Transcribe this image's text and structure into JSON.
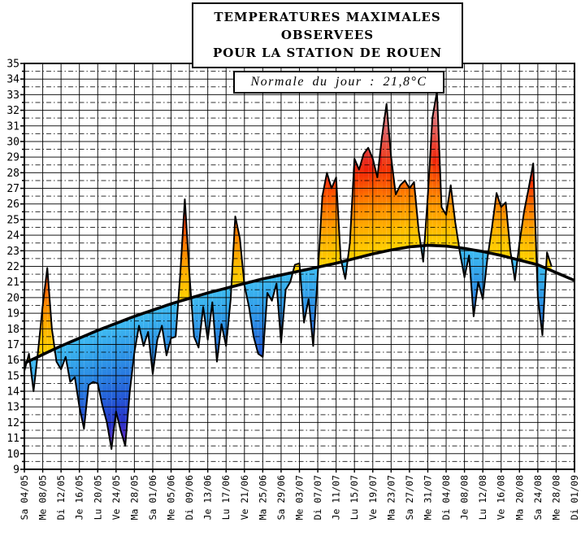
{
  "title": {
    "line1": "TEMPERATURES MAXIMALES OBSERVEES",
    "line2": "POUR LA STATION DE ROUEN"
  },
  "annotation": {
    "text": "Normale du jour : 21,8°C"
  },
  "chart_data": {
    "type": "area",
    "title": "TEMPERATURES MAXIMALES OBSERVEES POUR LA STATION DE ROUEN",
    "annotation": "Normale du jour : 21,8°C",
    "xlabel": "",
    "ylabel": "",
    "ylim": [
      9,
      35
    ],
    "y_tick_step": 1,
    "grid": {
      "h_solid_step": 1,
      "h_dash_step": 0.5,
      "v_step_days": 4,
      "grid_on": true
    },
    "total_days": 120,
    "days_per_tick": 4,
    "x_tick_labels": [
      "Sa 04/05",
      "Me 08/05",
      "Di 12/05",
      "Je 16/05",
      "Lu 20/05",
      "Ve 24/05",
      "Ma 28/05",
      "Sa 01/06",
      "Me 05/06",
      "Di 09/06",
      "Je 13/06",
      "Lu 17/06",
      "Ve 21/06",
      "Ma 25/06",
      "Sa 29/06",
      "Me 03/07",
      "Di 07/07",
      "Je 11/07",
      "Lu 15/07",
      "Ve 19/07",
      "Ma 23/07",
      "Sa 27/07",
      "Me 31/07",
      "Di 04/08",
      "Je 08/08",
      "Lu 12/08",
      "Ve 16/08",
      "Ma 20/08",
      "Sa 24/08",
      "Me 28/08",
      "Di 01/09"
    ],
    "series": [
      {
        "name": "normale du jour",
        "type": "line",
        "values_at_ticks": [
          15.8,
          16.35,
          16.9,
          17.4,
          17.9,
          18.35,
          18.8,
          19.2,
          19.6,
          19.95,
          20.3,
          20.6,
          20.9,
          21.2,
          21.45,
          21.7,
          21.95,
          22.2,
          22.5,
          22.8,
          23.05,
          23.25,
          23.35,
          23.3,
          23.15,
          22.95,
          22.7,
          22.4,
          22.1,
          21.6,
          21.1
        ]
      },
      {
        "name": "temperature maximale quotidienne",
        "type": "area",
        "start_day": 0,
        "values": [
          15.3,
          16.4,
          14.0,
          16.6,
          19.5,
          21.9,
          18.0,
          15.9,
          15.4,
          16.2,
          14.6,
          14.9,
          13.0,
          11.6,
          14.4,
          14.6,
          14.5,
          13.1,
          12.0,
          10.3,
          12.7,
          11.5,
          10.5,
          14.0,
          16.5,
          18.2,
          16.9,
          17.8,
          15.1,
          17.3,
          18.2,
          16.3,
          17.4,
          17.5,
          21.5,
          26.3,
          21.5,
          17.5,
          16.8,
          19.4,
          17.3,
          19.7,
          15.9,
          18.3,
          16.9,
          19.9,
          25.2,
          23.8,
          20.8,
          19.4,
          17.5,
          16.4,
          16.2,
          20.3,
          19.8,
          20.9,
          17.1,
          20.5,
          21.0,
          22.1,
          22.2,
          18.4,
          19.9,
          16.9,
          21.5,
          26.5,
          28.0,
          27.0,
          27.7,
          22.5,
          21.2,
          23.5,
          28.9,
          28.2,
          29.2,
          29.6,
          28.9,
          27.7,
          30.3,
          32.4,
          29.0,
          26.6,
          27.2,
          27.5,
          27.0,
          27.4,
          24.3,
          22.3,
          26.5,
          31.5,
          33.2,
          25.8,
          25.3,
          27.2,
          24.8,
          22.9,
          21.3,
          22.7,
          18.8,
          21.0,
          19.9,
          22.5,
          24.5,
          26.7,
          25.8,
          26.1,
          23.0,
          21.1,
          23.5,
          25.5,
          27.0,
          28.6,
          20.0,
          17.6,
          22.9,
          22.0
        ]
      }
    ],
    "colormap": {
      "above_normal": [
        [
          0,
          "#FFD200"
        ],
        [
          1.2,
          "#FFBE00"
        ],
        [
          2.5,
          "#FF9A00"
        ],
        [
          3.8,
          "#FF7300"
        ],
        [
          4.8,
          "#FF4A00"
        ],
        [
          5.5,
          "#EF2008"
        ],
        [
          6.2,
          "#E01818"
        ],
        [
          7.2,
          "#DE5050"
        ],
        [
          8.5,
          "#E68080"
        ],
        [
          10,
          "#EFA8A8"
        ]
      ],
      "below_normal": [
        [
          0,
          "#3FBCF2"
        ],
        [
          1.2,
          "#35A8EC"
        ],
        [
          2.5,
          "#2C90E6"
        ],
        [
          3.8,
          "#2774DE"
        ],
        [
          5,
          "#2356D6"
        ],
        [
          6,
          "#203CCE"
        ],
        [
          6.8,
          "#2A2CC6"
        ],
        [
          7.6,
          "#5C28C4"
        ],
        [
          8.6,
          "#8C32CA"
        ],
        [
          10,
          "#A84ED6"
        ]
      ]
    },
    "line_colors": {
      "grid": "#000000",
      "normal_curve": "#000000",
      "daily_line": "#000000"
    }
  }
}
